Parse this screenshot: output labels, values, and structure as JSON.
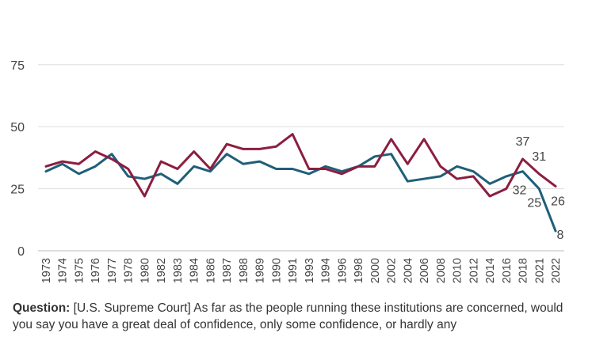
{
  "question": {
    "label": "Question:",
    "text": "[U.S. Supreme Court] As far as the people running these institutions are concerned, would you say you have a great deal of confidence, only some confidence, or hardly any"
  },
  "chart_data": {
    "type": "line",
    "x": [
      "1973",
      "1974",
      "1975",
      "1976",
      "1977",
      "1978",
      "1980",
      "1982",
      "1983",
      "1984",
      "1986",
      "1987",
      "1988",
      "1989",
      "1990",
      "1991",
      "1993",
      "1994",
      "1996",
      "1998",
      "2000",
      "2002",
      "2004",
      "2006",
      "2008",
      "2010",
      "2012",
      "2014",
      "2016",
      "2018",
      "2021",
      "2022"
    ],
    "ylim": [
      0,
      88
    ],
    "yticks": [
      0,
      25,
      50,
      75
    ],
    "grid": true,
    "series": [
      {
        "color": "#1f5f7a",
        "values": [
          32,
          35,
          31,
          34,
          39,
          30,
          29,
          31,
          27,
          34,
          32,
          39,
          35,
          36,
          33,
          33,
          31,
          34,
          32,
          34,
          38,
          39,
          28,
          29,
          30,
          34,
          32,
          27,
          30,
          32,
          25,
          8
        ]
      },
      {
        "color": "#8b1e3f",
        "values": [
          34,
          36,
          35,
          40,
          37,
          33,
          22,
          36,
          33,
          40,
          33,
          43,
          41,
          41,
          42,
          47,
          33,
          33,
          31,
          34,
          34,
          45,
          35,
          45,
          34,
          29,
          30,
          22,
          25,
          37,
          31,
          26
        ]
      }
    ],
    "annotations": [
      {
        "text": "37",
        "series": 1,
        "index": 29
      },
      {
        "text": "31",
        "series": 1,
        "index": 30
      },
      {
        "text": "26",
        "series": 1,
        "index": 31
      },
      {
        "text": "32",
        "series": 0,
        "index": 29
      },
      {
        "text": "25",
        "series": 0,
        "index": 30
      },
      {
        "text": "8",
        "series": 0,
        "index": 31
      }
    ]
  }
}
